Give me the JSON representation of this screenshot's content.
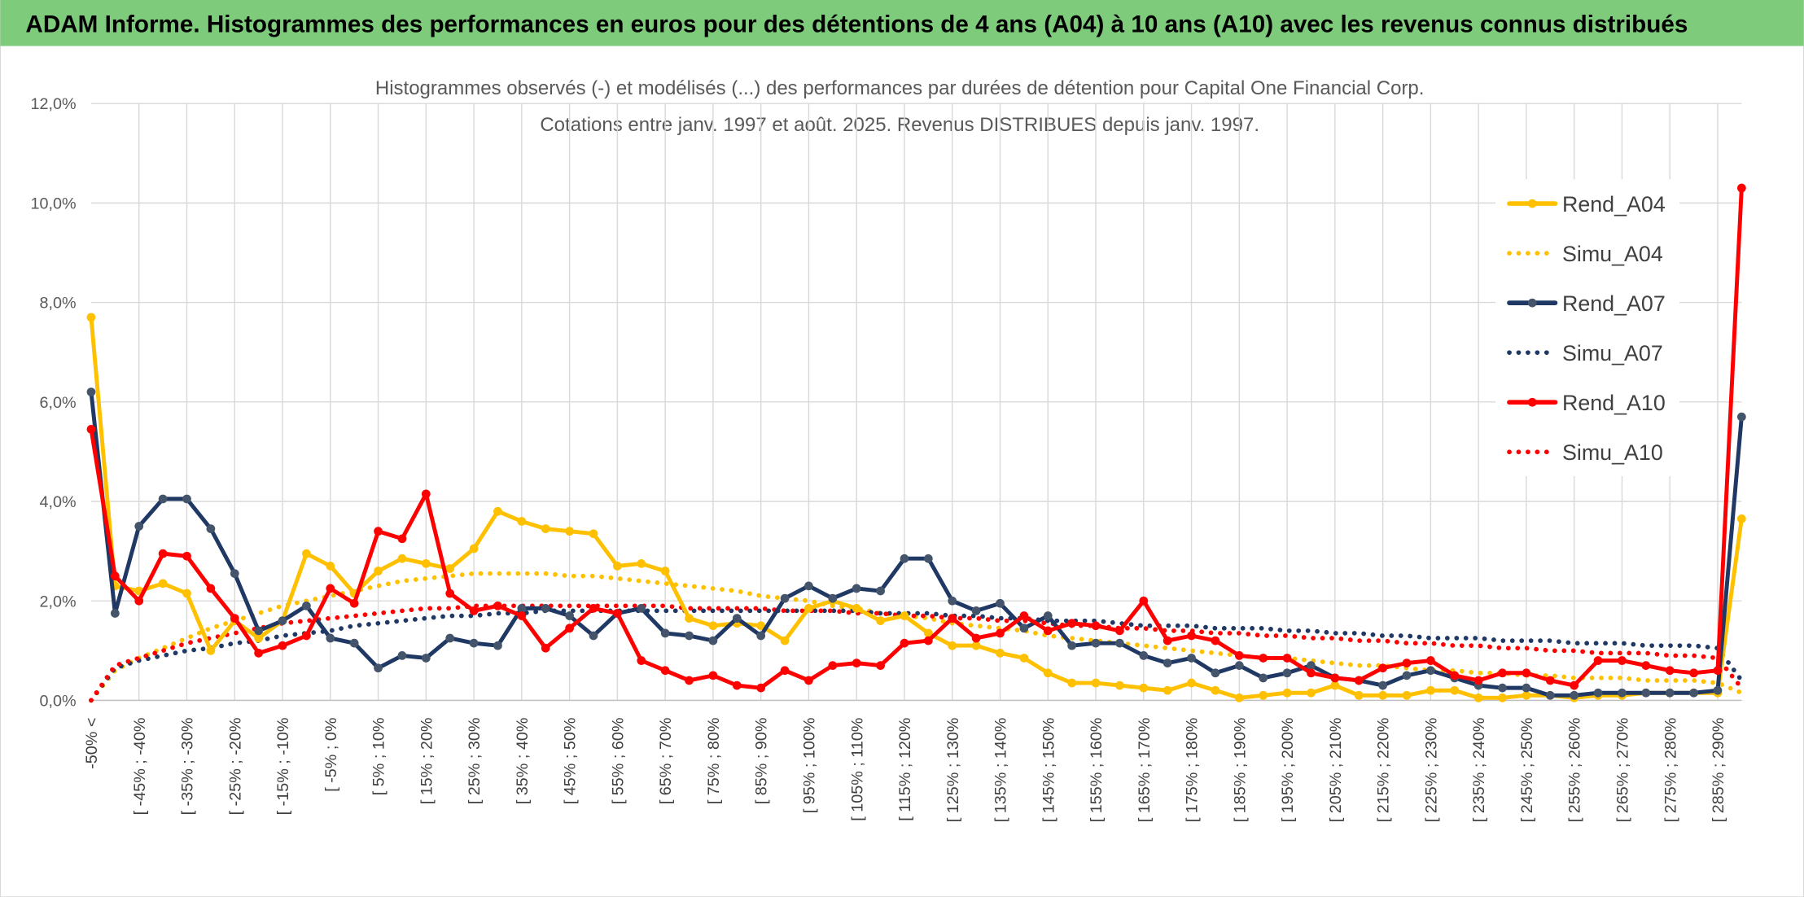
{
  "banner": "ADAM Informe. Histogrammes des performances en euros pour des détentions de 4 ans (A04) à 10 ans (A10) avec les revenus connus distribués",
  "chart_data": {
    "type": "line",
    "title": "Histogrammes observés (-) et modélisés (...) des performances par durées de détention pour Capital One Financial Corp.",
    "subtitle": "Cotations entre janv. 1997 et août. 2025. Revenus DISTRIBUES depuis janv. 1997.",
    "categories": [
      "-50% <",
      null,
      "[ -45% ; -40%",
      null,
      "[ -35% ; -30%",
      null,
      "[ -25% ; -20%",
      null,
      "[ -15% ; -10%",
      null,
      "[ -5% ; 0%",
      null,
      "[ 5% ; 10%",
      null,
      "[ 15% ; 20%",
      null,
      "[ 25% ; 30%",
      null,
      "[ 35% ; 40%",
      null,
      "[ 45% ; 50%",
      null,
      "[ 55% ; 60%",
      null,
      "[ 65% ; 70%",
      null,
      "[ 75% ; 80%",
      null,
      "[ 85% ; 90%",
      null,
      "[ 95% ; 100%",
      null,
      "[ 105% ; 110%",
      null,
      "[ 115% ; 120%",
      null,
      "[ 125% ; 130%",
      null,
      "[ 135% ; 140%",
      null,
      "[ 145% ; 150%",
      null,
      "[ 155% ; 160%",
      null,
      "[ 165% ; 170%",
      null,
      "[ 175% ; 180%",
      null,
      "[ 185% ; 190%",
      null,
      "[ 195% ; 200%",
      null,
      "[ 205% ; 210%",
      null,
      "[ 215% ; 220%",
      null,
      "[ 225% ; 230%",
      null,
      "[ 235% ; 240%",
      null,
      "[ 245% ; 250%",
      null,
      "[ 255% ; 260%",
      null,
      "[ 265% ; 270%",
      null,
      "[ 275% ; 280%",
      null,
      "[ 285% ; 290%",
      null
    ],
    "series": [
      {
        "name": "Rend_A04",
        "color": "#FFC000",
        "style": "solid",
        "values": [
          7.7,
          2.3,
          2.2,
          2.35,
          2.15,
          1.0,
          1.6,
          1.25,
          1.6,
          2.95,
          2.7,
          2.15,
          2.6,
          2.85,
          2.75,
          2.65,
          3.05,
          3.8,
          3.6,
          3.45,
          3.4,
          3.35,
          2.7,
          2.75,
          2.6,
          1.65,
          1.5,
          1.55,
          1.5,
          1.2,
          1.85,
          2.0,
          1.85,
          1.6,
          1.7,
          1.35,
          1.1,
          1.1,
          0.95,
          0.85,
          0.55,
          0.35,
          0.35,
          0.3,
          0.25,
          0.2,
          0.35,
          0.2,
          0.05,
          0.1,
          0.15,
          0.15,
          0.3,
          0.1,
          0.1,
          0.1,
          0.2,
          0.2,
          0.05,
          0.05,
          0.1,
          0.1,
          0.05,
          0.1,
          0.1,
          0.15,
          0.15,
          0.15,
          0.15,
          3.65
        ]
      },
      {
        "name": "Simu_A04",
        "color": "#FFC000",
        "style": "dotted",
        "values": [
          0.0,
          0.6,
          0.85,
          1.05,
          1.25,
          1.45,
          1.6,
          1.75,
          1.9,
          2.0,
          2.1,
          2.2,
          2.3,
          2.4,
          2.45,
          2.5,
          2.55,
          2.55,
          2.55,
          2.55,
          2.5,
          2.5,
          2.45,
          2.4,
          2.35,
          2.3,
          2.25,
          2.2,
          2.1,
          2.05,
          2.0,
          1.9,
          1.85,
          1.75,
          1.7,
          1.65,
          1.55,
          1.5,
          1.45,
          1.4,
          1.3,
          1.25,
          1.2,
          1.15,
          1.1,
          1.05,
          1.0,
          0.95,
          0.9,
          0.85,
          0.85,
          0.8,
          0.75,
          0.7,
          0.7,
          0.65,
          0.6,
          0.6,
          0.55,
          0.55,
          0.5,
          0.5,
          0.45,
          0.45,
          0.45,
          0.4,
          0.4,
          0.4,
          0.35,
          0.15
        ]
      },
      {
        "name": "Rend_A07",
        "color": "#1F3864",
        "marker_color": "#44546A",
        "style": "solid",
        "values": [
          6.2,
          1.75,
          3.5,
          4.05,
          4.05,
          3.45,
          2.55,
          1.4,
          1.6,
          1.9,
          1.25,
          1.15,
          0.65,
          0.9,
          0.85,
          1.25,
          1.15,
          1.1,
          1.85,
          1.85,
          1.7,
          1.3,
          1.75,
          1.85,
          1.35,
          1.3,
          1.2,
          1.65,
          1.3,
          2.05,
          2.3,
          2.05,
          2.25,
          2.2,
          2.85,
          2.85,
          2.0,
          1.8,
          1.95,
          1.45,
          1.7,
          1.1,
          1.15,
          1.15,
          0.9,
          0.75,
          0.85,
          0.55,
          0.7,
          0.45,
          0.55,
          0.7,
          0.45,
          0.4,
          0.3,
          0.5,
          0.6,
          0.45,
          0.3,
          0.25,
          0.25,
          0.1,
          0.1,
          0.15,
          0.15,
          0.15,
          0.15,
          0.15,
          0.2,
          5.7
        ]
      },
      {
        "name": "Simu_A07",
        "color": "#1F3864",
        "style": "dotted",
        "values": [
          0.0,
          0.65,
          0.8,
          0.9,
          1.0,
          1.05,
          1.15,
          1.2,
          1.3,
          1.35,
          1.4,
          1.5,
          1.55,
          1.6,
          1.65,
          1.7,
          1.7,
          1.75,
          1.75,
          1.8,
          1.8,
          1.8,
          1.8,
          1.8,
          1.8,
          1.8,
          1.8,
          1.8,
          1.8,
          1.8,
          1.8,
          1.8,
          1.8,
          1.75,
          1.75,
          1.75,
          1.7,
          1.7,
          1.65,
          1.65,
          1.6,
          1.6,
          1.6,
          1.55,
          1.5,
          1.5,
          1.5,
          1.45,
          1.45,
          1.45,
          1.4,
          1.4,
          1.35,
          1.35,
          1.3,
          1.3,
          1.25,
          1.25,
          1.25,
          1.2,
          1.2,
          1.2,
          1.15,
          1.15,
          1.15,
          1.1,
          1.1,
          1.1,
          1.05,
          0.4
        ]
      },
      {
        "name": "Rend_A10",
        "color": "#FF0000",
        "style": "solid",
        "values": [
          5.45,
          2.5,
          2.0,
          2.95,
          2.9,
          2.25,
          1.65,
          0.95,
          1.1,
          1.3,
          2.25,
          1.95,
          3.4,
          3.25,
          4.15,
          2.15,
          1.8,
          1.9,
          1.7,
          1.05,
          1.45,
          1.85,
          1.75,
          0.8,
          0.6,
          0.4,
          0.5,
          0.3,
          0.25,
          0.6,
          0.4,
          0.7,
          0.75,
          0.7,
          1.15,
          1.2,
          1.65,
          1.25,
          1.35,
          1.7,
          1.4,
          1.55,
          1.5,
          1.4,
          2.0,
          1.2,
          1.3,
          1.2,
          0.9,
          0.85,
          0.85,
          0.55,
          0.45,
          0.4,
          0.65,
          0.75,
          0.8,
          0.5,
          0.4,
          0.55,
          0.55,
          0.4,
          0.3,
          0.8,
          0.8,
          0.7,
          0.6,
          0.55,
          0.6,
          10.3
        ]
      },
      {
        "name": "Simu_A10",
        "color": "#FF0000",
        "style": "dotted",
        "values": [
          0.0,
          0.7,
          0.85,
          1.0,
          1.15,
          1.25,
          1.35,
          1.45,
          1.55,
          1.6,
          1.65,
          1.7,
          1.75,
          1.8,
          1.85,
          1.85,
          1.9,
          1.9,
          1.9,
          1.9,
          1.9,
          1.9,
          1.9,
          1.9,
          1.9,
          1.85,
          1.85,
          1.85,
          1.85,
          1.8,
          1.8,
          1.8,
          1.75,
          1.75,
          1.7,
          1.7,
          1.65,
          1.65,
          1.6,
          1.6,
          1.55,
          1.5,
          1.5,
          1.45,
          1.45,
          1.4,
          1.4,
          1.35,
          1.35,
          1.3,
          1.3,
          1.25,
          1.25,
          1.2,
          1.2,
          1.15,
          1.15,
          1.1,
          1.1,
          1.05,
          1.05,
          1.0,
          1.0,
          0.95,
          0.95,
          0.95,
          0.9,
          0.9,
          0.85,
          0.25
        ]
      }
    ],
    "ylim": [
      0,
      12
    ],
    "yticks": [
      {
        "value": 0,
        "label": "0,0%"
      },
      {
        "value": 2,
        "label": "2,0%"
      },
      {
        "value": 4,
        "label": "4,0%"
      },
      {
        "value": 6,
        "label": "6,0%"
      },
      {
        "value": 8,
        "label": "8,0%"
      },
      {
        "value": 10,
        "label": "10,0%"
      },
      {
        "value": 12,
        "label": "12,0%"
      }
    ],
    "grid": true,
    "legend": "right"
  }
}
